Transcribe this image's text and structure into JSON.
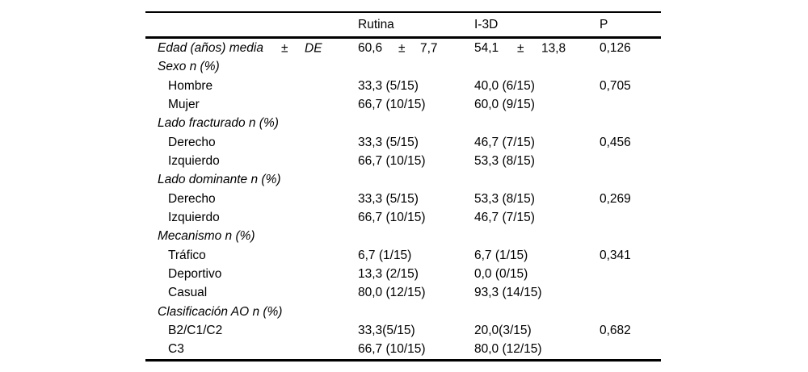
{
  "table": {
    "header": [
      "",
      "Rutina",
      "I-3D",
      "P"
    ],
    "rows": [
      {
        "label": "Edad (años) media",
        "pm": "±",
        "sd": "DE",
        "rutina_mean": "60,6",
        "rutina_pm": "±",
        "rutina_sd": "7,7",
        "i3d_mean": "54,1",
        "i3d_pm": "±",
        "i3d_sd": "13,8",
        "p": "0,126"
      },
      {
        "label": "Sexo n (%)"
      },
      {
        "label": "Hombre",
        "rutina": "33,3 (5/15)",
        "i3d": "40,0 (6/15)",
        "p": "0,705"
      },
      {
        "label": "Mujer",
        "rutina": "66,7 (10/15)",
        "i3d": "60,0 (9/15)",
        "p": ""
      },
      {
        "label": "Lado fracturado n (%)"
      },
      {
        "label": "Derecho",
        "rutina": "33,3 (5/15)",
        "i3d": "46,7 (7/15)",
        "p": "0,456"
      },
      {
        "label": "Izquierdo",
        "rutina": "66,7 (10/15)",
        "i3d": "53,3 (8/15)",
        "p": ""
      },
      {
        "label": "Lado dominante n (%)"
      },
      {
        "label": "Derecho",
        "rutina": "33,3 (5/15)",
        "i3d": "53,3 (8/15)",
        "p": "0,269"
      },
      {
        "label": "Izquierdo",
        "rutina": "66,7 (10/15)",
        "i3d": "46,7 (7/15)",
        "p": ""
      },
      {
        "label": "Mecanismo n (%)"
      },
      {
        "label": "Tráfico",
        "rutina": "6,7 (1/15)",
        "i3d": "6,7 (1/15)",
        "p": "0,341"
      },
      {
        "label": "Deportivo",
        "rutina": "13,3 (2/15)",
        "i3d": "0,0 (0/15)",
        "p": ""
      },
      {
        "label": "Casual",
        "rutina": "80,0 (12/15)",
        "i3d": "93,3 (14/15)",
        "p": ""
      },
      {
        "label": "Clasificación AO n (%)"
      },
      {
        "label": "B2/C1/C2",
        "rutina": "33,3(5/15)",
        "i3d": "20,0(3/15)",
        "p": "0,682"
      },
      {
        "label": "C3",
        "rutina": "66,7 (10/15)",
        "i3d": "80,0 (12/15)",
        "p": ""
      }
    ]
  }
}
